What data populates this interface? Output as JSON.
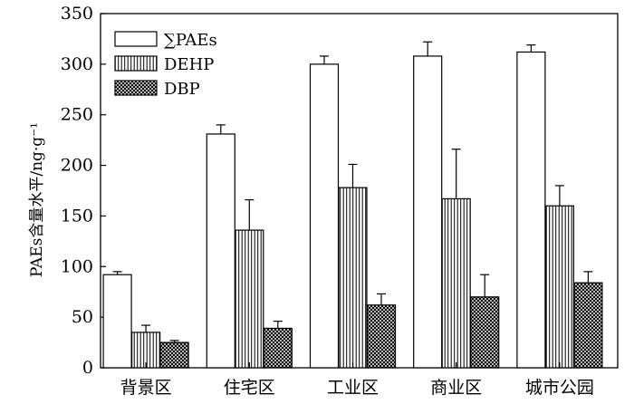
{
  "chart_data": {
    "type": "bar",
    "title": "",
    "xlabel": "",
    "ylabel": "PAEs含量水平/ng·g⁻¹",
    "ylim": [
      0,
      350
    ],
    "yticks": [
      "0",
      "50",
      "100",
      "150",
      "200",
      "250",
      "300",
      "350"
    ],
    "categories": [
      "背景区",
      "住宅区",
      "工业区",
      "商业区",
      "城市公园"
    ],
    "series": [
      {
        "name": "∑PAEs",
        "pattern": "white",
        "values": [
          92,
          231,
          300,
          308,
          312
        ],
        "errors": [
          3,
          9,
          8,
          14,
          7
        ]
      },
      {
        "name": "DEHP",
        "pattern": "vertical-lines",
        "values": [
          35,
          136,
          178,
          167,
          160
        ],
        "errors": [
          7,
          30,
          23,
          49,
          20
        ]
      },
      {
        "name": "DBP",
        "pattern": "crosshatch",
        "values": [
          25,
          39,
          62,
          70,
          84
        ],
        "errors": [
          2,
          7,
          11,
          22,
          11
        ]
      }
    ],
    "legend_position": "top-left",
    "grid": false
  }
}
